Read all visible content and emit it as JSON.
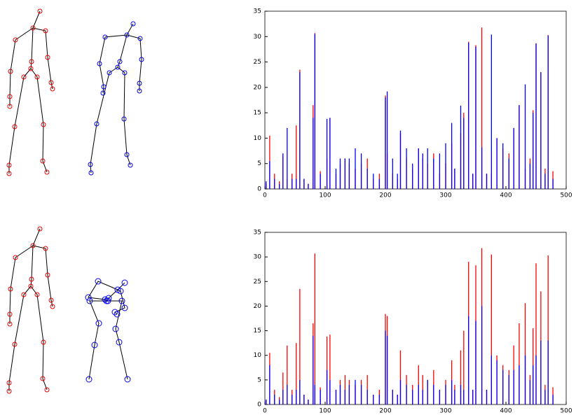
{
  "chart_data": [
    {
      "type": "spike",
      "x": [
        2,
        8,
        16,
        24,
        30,
        37,
        45,
        52,
        58,
        65,
        72,
        80,
        83,
        92,
        103,
        108,
        118,
        125,
        133,
        140,
        150,
        160,
        170,
        180,
        190,
        200,
        203,
        212,
        220,
        225,
        235,
        245,
        255,
        262,
        270,
        280,
        290,
        300,
        310,
        315,
        325,
        330,
        338,
        345,
        350,
        360,
        368,
        376,
        385,
        395,
        405,
        413,
        422,
        432,
        440,
        445,
        450,
        458,
        465,
        470,
        478
      ],
      "series": [
        {
          "color": "#ff0000",
          "values": [
            1,
            10.5,
            3,
            1.5,
            6.5,
            2,
            3,
            12.5,
            23.5,
            2,
            1,
            16.5,
            30.7,
            3.5,
            6,
            14,
            3,
            5,
            6,
            5,
            4,
            5,
            6,
            2,
            3,
            18.4,
            7,
            3,
            2,
            11,
            6,
            4,
            8,
            6,
            5,
            7,
            3,
            5,
            9,
            4,
            11,
            15,
            29,
            3,
            28.3,
            31.8,
            3,
            3,
            10,
            8,
            7,
            12,
            16.5,
            4,
            6,
            15.5,
            28.7,
            23,
            4,
            30.3,
            3.5
          ]
        },
        {
          "color": "#0000ff",
          "values": [
            1.5,
            5.5,
            2,
            1,
            7,
            12,
            2,
            2,
            23,
            2,
            1,
            14,
            30.5,
            3,
            13.8,
            14,
            4,
            6,
            6,
            6,
            8,
            7,
            4,
            3,
            2,
            18,
            19.2,
            6,
            3,
            11.5,
            8,
            5,
            8,
            7,
            8,
            6,
            7,
            9,
            13,
            4,
            16.4,
            14,
            28.8,
            3,
            28,
            8.2,
            3,
            30.4,
            10,
            9,
            6,
            12,
            16.5,
            20.6,
            5,
            15,
            28.6,
            23,
            3,
            30.2,
            2
          ]
        }
      ],
      "xlim": [
        0,
        500
      ],
      "xticks": [
        0,
        100,
        200,
        300,
        400,
        500
      ],
      "ylim": [
        0,
        35
      ],
      "yticks": [
        0,
        5,
        10,
        15,
        20,
        25,
        30,
        35
      ]
    },
    {
      "type": "spike",
      "x": [
        2,
        8,
        16,
        24,
        30,
        37,
        45,
        52,
        58,
        65,
        72,
        80,
        83,
        92,
        103,
        108,
        118,
        125,
        133,
        140,
        150,
        160,
        170,
        180,
        190,
        200,
        203,
        212,
        220,
        225,
        235,
        245,
        255,
        262,
        270,
        280,
        290,
        300,
        310,
        315,
        325,
        330,
        338,
        345,
        350,
        360,
        368,
        376,
        385,
        395,
        405,
        413,
        422,
        432,
        440,
        445,
        450,
        458,
        465,
        470,
        478
      ],
      "series": [
        {
          "color": "#ff0000",
          "values": [
            1,
            10.5,
            3,
            1.5,
            6.5,
            12,
            3,
            12.5,
            23.5,
            2,
            1,
            16.5,
            30.7,
            3.5,
            13.8,
            14.2,
            3,
            5,
            6,
            5,
            4,
            5,
            6,
            2,
            3,
            18.4,
            18,
            3,
            2,
            11,
            6,
            4,
            8,
            6,
            5,
            7,
            3,
            5,
            9,
            4,
            11,
            15,
            29,
            3,
            28.3,
            31.8,
            3,
            30.5,
            10,
            8,
            7,
            12,
            16.5,
            20.6,
            6,
            15.5,
            28.7,
            23,
            4,
            30.3,
            3.5
          ]
        },
        {
          "color": "#0000ff",
          "values": [
            1,
            8,
            2,
            1,
            3,
            4,
            2,
            3,
            5,
            2,
            1,
            14,
            4,
            3,
            7,
            5,
            3,
            4,
            3,
            4,
            5,
            4,
            3,
            2,
            2,
            15,
            14,
            3,
            2,
            5,
            4,
            3,
            4,
            3,
            5,
            4,
            3,
            4,
            5,
            3,
            4,
            3,
            18,
            3,
            17,
            20,
            3,
            10,
            9,
            7,
            6,
            7,
            8,
            10,
            5,
            8,
            10,
            13,
            3,
            13,
            2
          ]
        }
      ],
      "xlim": [
        0,
        500
      ],
      "xticks": [
        0,
        100,
        200,
        300,
        400,
        500
      ],
      "ylim": [
        0,
        35
      ],
      "yticks": [
        0,
        5,
        10,
        15,
        20,
        25,
        30,
        35
      ]
    }
  ]
}
